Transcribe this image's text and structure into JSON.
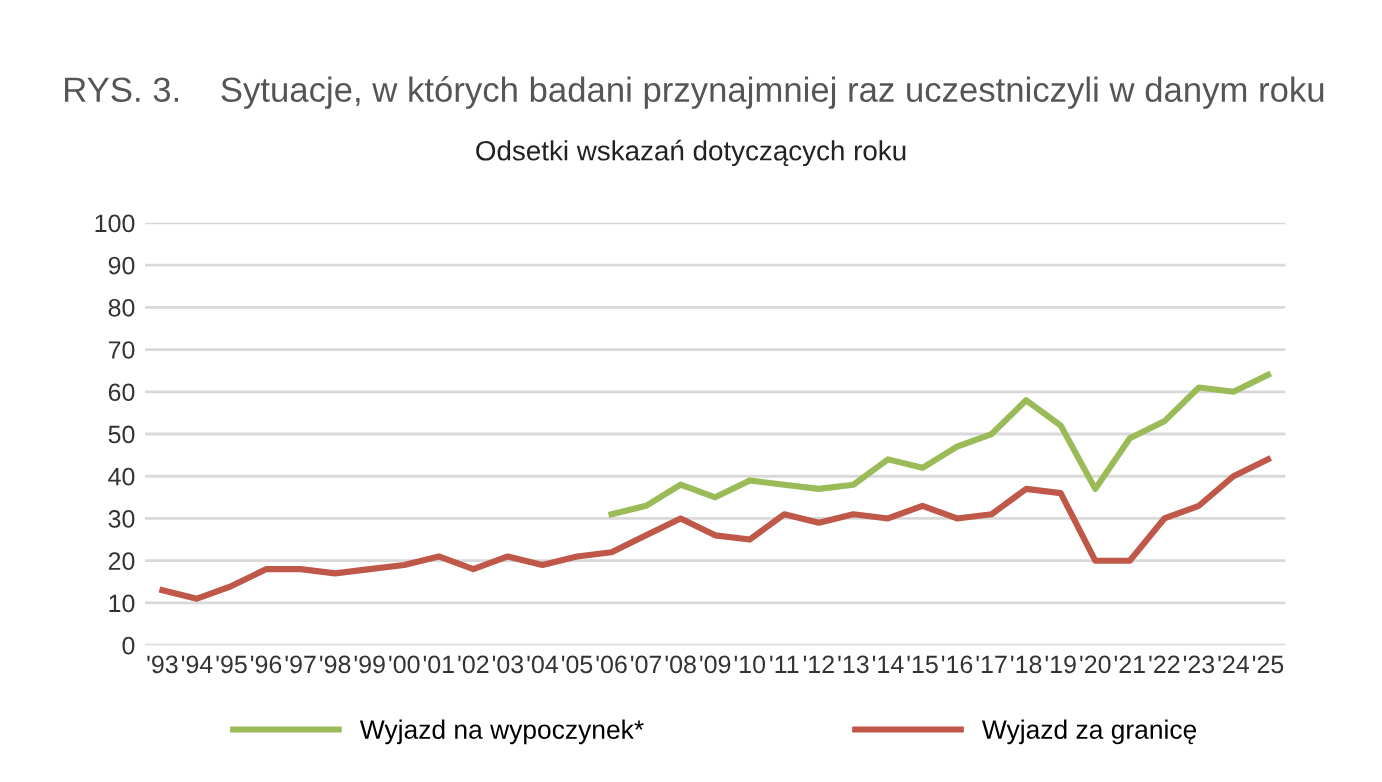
{
  "chart_data": {
    "type": "line",
    "title": "RYS. 3.    Sytuacje, w których badani przynajmniej raz uczestniczyli w danym roku",
    "subtitle": "Odsetki wskazań dotyczących roku",
    "categories": [
      "'93",
      "'94",
      "'95",
      "'96",
      "'97",
      "'98",
      "'99",
      "'00",
      "'01",
      "'02",
      "'03",
      "'04",
      "'05",
      "'06",
      "'07",
      "'08",
      "'09",
      "'10",
      "'11",
      "'12",
      "'13",
      "'14",
      "'15",
      "'16",
      "'17",
      "'18",
      "'19",
      "'20",
      "'21",
      "'22",
      "'23",
      "'24",
      "'25"
    ],
    "series": [
      {
        "name": "Wyjazd na wypoczynek*",
        "color": "#9bbb59",
        "values": [
          null,
          null,
          null,
          null,
          null,
          null,
          null,
          null,
          null,
          null,
          null,
          null,
          null,
          31,
          33,
          38,
          35,
          39,
          38,
          37,
          38,
          44,
          42,
          47,
          50,
          58,
          52,
          37,
          49,
          53,
          61,
          60,
          64
        ]
      },
      {
        "name": "Wyjazd za granicę",
        "color": "#c0584a",
        "values": [
          13,
          11,
          14,
          18,
          18,
          17,
          18,
          19,
          21,
          18,
          21,
          19,
          21,
          22,
          26,
          30,
          26,
          25,
          31,
          29,
          31,
          30,
          33,
          30,
          31,
          37,
          36,
          20,
          20,
          30,
          33,
          40,
          44
        ]
      }
    ],
    "ylim": [
      0,
      100
    ],
    "yticks": [
      0,
      10,
      20,
      30,
      40,
      50,
      60,
      70,
      80,
      90,
      100
    ],
    "grid": "y",
    "legend": "bottom",
    "marker": "none",
    "line_style": "solid"
  }
}
